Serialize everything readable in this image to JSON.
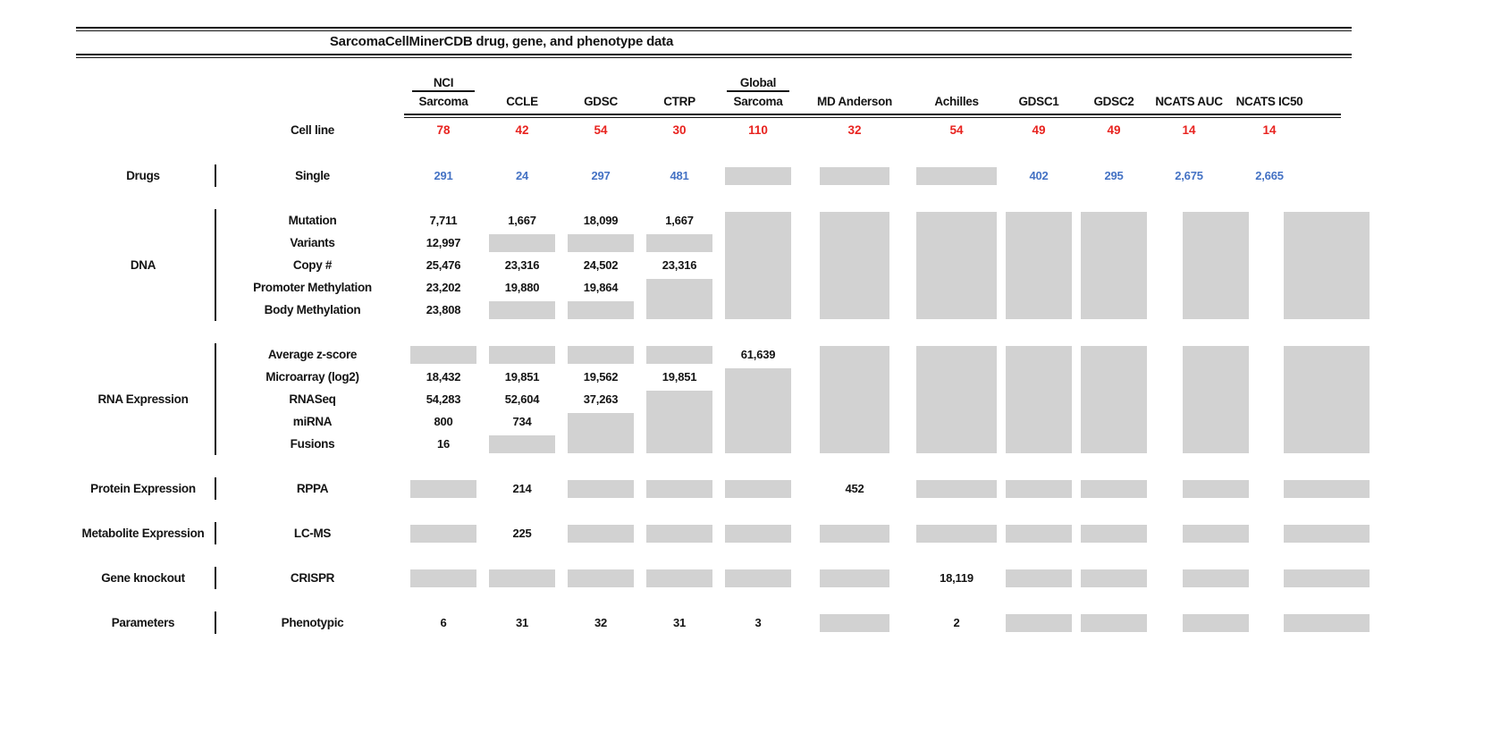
{
  "title": "SarcomaCellMinerCDB drug, gene, and phenotype data",
  "colors": {
    "cell_line_count_red": "#e8231f",
    "drug_value_blue": "#4472c4",
    "box_gray": "#d2d2d2",
    "line_black": "#151515"
  },
  "chart_data": {
    "type": "table",
    "title": "SarcomaCellMinerCDB drug, gene, and phenotype data",
    "row_header_label": "Cell line",
    "columns": [
      {
        "header_top": "NCI",
        "header": "Sarcoma",
        "cell_lines": "78"
      },
      {
        "header": "CCLE",
        "cell_lines": "42"
      },
      {
        "header": "GDSC",
        "cell_lines": "54"
      },
      {
        "header": "CTRP",
        "cell_lines": "30"
      },
      {
        "header_top": "Global",
        "header": "Sarcoma",
        "cell_lines": "110"
      },
      {
        "header": "MD Anderson",
        "cell_lines": "32"
      },
      {
        "header": "Achilles",
        "cell_lines": "54"
      },
      {
        "header": "GDSC1",
        "cell_lines": "49"
      },
      {
        "header": "GDSC2",
        "cell_lines": "49"
      },
      {
        "header": "NCATS AUC",
        "cell_lines": "14"
      },
      {
        "header": "NCATS IC50",
        "cell_lines": "14"
      }
    ],
    "sections": [
      {
        "category": "Drugs",
        "value_class": "blue",
        "rows": [
          {
            "label": "Single",
            "values": [
              "291",
              "24",
              "297",
              "481",
              null,
              null,
              null,
              "402",
              "295",
              "2,675",
              "2,665"
            ]
          }
        ]
      },
      {
        "category": "DNA",
        "rows": [
          {
            "label": "Mutation",
            "values": [
              "7,711",
              "1,667",
              "18,099",
              "1,667",
              null,
              null,
              null,
              null,
              null,
              null,
              null
            ]
          },
          {
            "label": "Variants",
            "values": [
              "12,997",
              null,
              null,
              null,
              null,
              null,
              null,
              null,
              null,
              null,
              null
            ]
          },
          {
            "label": "Copy #",
            "values": [
              "25,476",
              "23,316",
              "24,502",
              "23,316",
              null,
              null,
              null,
              null,
              null,
              null,
              null
            ]
          },
          {
            "label": "Promoter Methylation",
            "values": [
              "23,202",
              "19,880",
              "19,864",
              null,
              null,
              null,
              null,
              null,
              null,
              null,
              null
            ]
          },
          {
            "label": "Body Methylation",
            "values": [
              "23,808",
              null,
              null,
              null,
              null,
              null,
              null,
              null,
              null,
              null,
              null
            ]
          }
        ]
      },
      {
        "category": "RNA Expression",
        "rows": [
          {
            "label": "Average z-score",
            "values": [
              null,
              null,
              null,
              null,
              "61,639",
              null,
              null,
              null,
              null,
              null,
              null
            ]
          },
          {
            "label": "Microarray (log2)",
            "values": [
              "18,432",
              "19,851",
              "19,562",
              "19,851",
              null,
              null,
              null,
              null,
              null,
              null,
              null
            ]
          },
          {
            "label": "RNASeq",
            "values": [
              "54,283",
              "52,604",
              "37,263",
              null,
              null,
              null,
              null,
              null,
              null,
              null,
              null
            ]
          },
          {
            "label": "miRNA",
            "values": [
              "800",
              "734",
              null,
              null,
              null,
              null,
              null,
              null,
              null,
              null,
              null
            ]
          },
          {
            "label": "Fusions",
            "values": [
              "16",
              null,
              null,
              null,
              null,
              null,
              null,
              null,
              null,
              null,
              null
            ]
          }
        ]
      },
      {
        "category": "Protein Expression",
        "rows": [
          {
            "label": "RPPA",
            "values": [
              null,
              "214",
              null,
              null,
              null,
              "452",
              null,
              null,
              null,
              null,
              null
            ]
          }
        ]
      },
      {
        "category": "Metabolite Expression",
        "rows": [
          {
            "label": "LC-MS",
            "values": [
              null,
              "225",
              null,
              null,
              null,
              null,
              null,
              null,
              null,
              null,
              null
            ]
          }
        ]
      },
      {
        "category": "Gene knockout",
        "rows": [
          {
            "label": "CRISPR",
            "values": [
              null,
              null,
              null,
              null,
              null,
              null,
              "18,119",
              null,
              null,
              null,
              null
            ]
          }
        ]
      },
      {
        "category": "Parameters",
        "rows": [
          {
            "label": "Phenotypic",
            "values": [
              "6",
              "31",
              "32",
              "31",
              "3",
              null,
              "2",
              null,
              null,
              null,
              null
            ]
          }
        ]
      }
    ],
    "legend_note": ""
  }
}
